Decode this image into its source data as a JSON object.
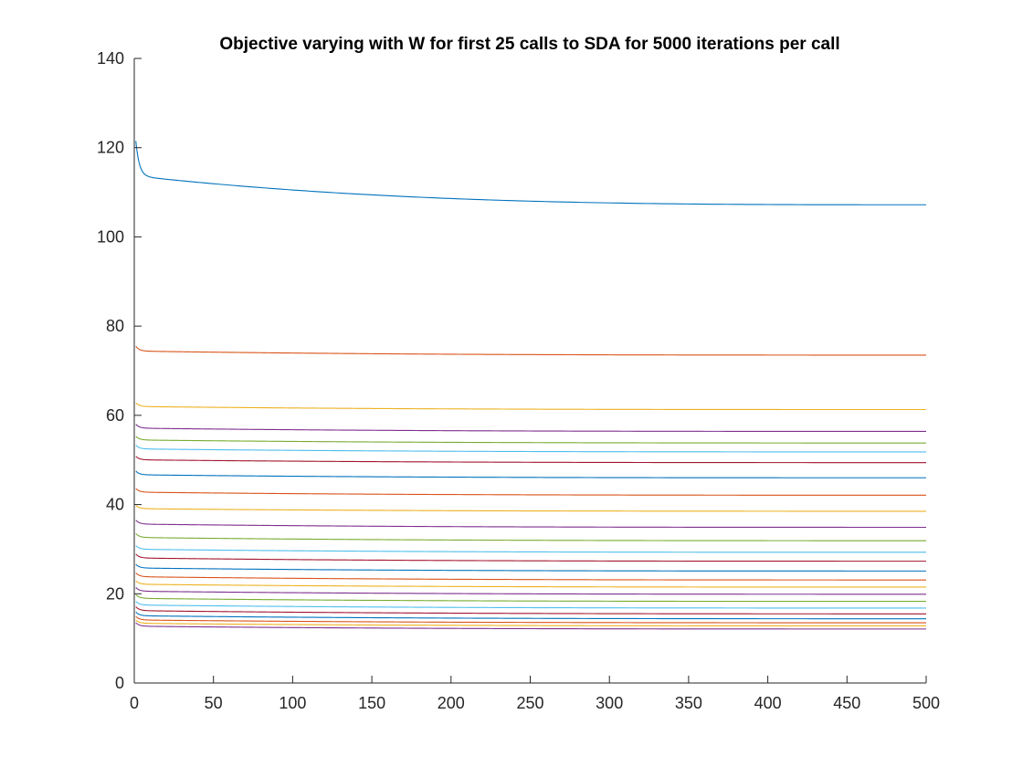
{
  "chart_data": {
    "type": "line",
    "title": "Objective varying with W for first 25 calls to SDA for 5000 iterations per call",
    "xlabel": "",
    "ylabel": "",
    "xlim": [
      0,
      500
    ],
    "ylim": [
      0,
      140
    ],
    "xticks": [
      "0",
      "50",
      "100",
      "150",
      "200",
      "250",
      "300",
      "350",
      "400",
      "450",
      "500"
    ],
    "yticks": [
      "0",
      "20",
      "40",
      "60",
      "80",
      "100",
      "120",
      "140"
    ],
    "grid": false,
    "legend": "none",
    "x_start": 1,
    "x_end": 500,
    "series": [
      {
        "start": 121.5,
        "end": 107.2,
        "color": "#0072BD"
      },
      {
        "start": 75.5,
        "end": 73.5,
        "color": "#D95319"
      },
      {
        "start": 62.8,
        "end": 61.3,
        "color": "#EDB120"
      },
      {
        "start": 58.0,
        "end": 56.4,
        "color": "#7E2F8E"
      },
      {
        "start": 55.3,
        "end": 53.8,
        "color": "#77AC30"
      },
      {
        "start": 53.3,
        "end": 51.8,
        "color": "#4DBEEE"
      },
      {
        "start": 50.8,
        "end": 49.4,
        "color": "#A2142F"
      },
      {
        "start": 47.5,
        "end": 46.0,
        "color": "#0072BD"
      },
      {
        "start": 43.6,
        "end": 42.1,
        "color": "#D95319"
      },
      {
        "start": 39.8,
        "end": 38.5,
        "color": "#EDB120"
      },
      {
        "start": 36.5,
        "end": 34.9,
        "color": "#7E2F8E"
      },
      {
        "start": 33.5,
        "end": 31.9,
        "color": "#77AC30"
      },
      {
        "start": 30.8,
        "end": 29.3,
        "color": "#4DBEEE"
      },
      {
        "start": 28.9,
        "end": 27.3,
        "color": "#A2142F"
      },
      {
        "start": 26.6,
        "end": 25.1,
        "color": "#0072BD"
      },
      {
        "start": 24.7,
        "end": 23.1,
        "color": "#D95319"
      },
      {
        "start": 22.9,
        "end": 21.5,
        "color": "#EDB120"
      },
      {
        "start": 21.4,
        "end": 19.9,
        "color": "#7E2F8E"
      },
      {
        "start": 19.8,
        "end": 18.3,
        "color": "#77AC30"
      },
      {
        "start": 18.3,
        "end": 16.8,
        "color": "#4DBEEE"
      },
      {
        "start": 17.1,
        "end": 15.5,
        "color": "#A2142F"
      },
      {
        "start": 15.9,
        "end": 14.4,
        "color": "#0072BD"
      },
      {
        "start": 14.9,
        "end": 13.5,
        "color": "#D95319"
      },
      {
        "start": 14.1,
        "end": 12.8,
        "color": "#EDB120"
      },
      {
        "start": 13.5,
        "end": 12.1,
        "color": "#7E2F8E"
      }
    ]
  }
}
